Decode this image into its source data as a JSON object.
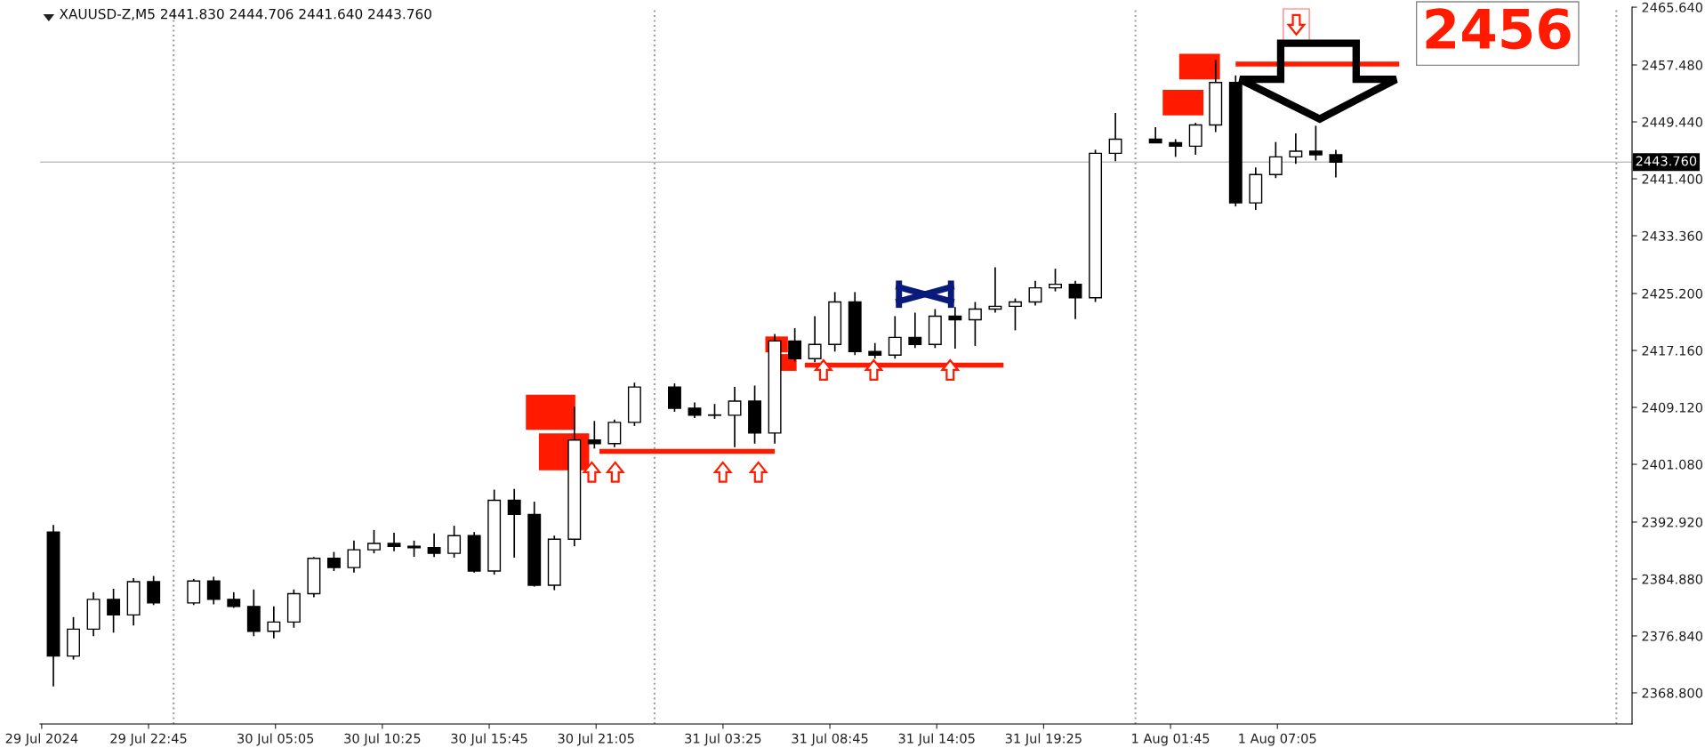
{
  "chart_data": {
    "type": "candlestick",
    "title": "XAUUSD-Z,M5 2441.830 2444.706 2441.640 2443.760",
    "color": "#000000",
    "x": [
      "2024-07-29T18:00",
      "2024-07-29T19:00",
      "2024-07-29T20:00",
      "2024-07-29T21:00",
      "2024-07-29T22:00",
      "2024-07-29T23:00",
      "2024-07-30T01:00",
      "2024-07-30T02:00",
      "2024-07-30T03:00",
      "2024-07-30T04:00",
      "2024-07-30T05:00",
      "2024-07-30T06:00",
      "2024-07-30T07:00",
      "2024-07-30T08:00",
      "2024-07-30T09:00",
      "2024-07-30T10:00",
      "2024-07-30T11:00",
      "2024-07-30T12:00",
      "2024-07-30T13:00",
      "2024-07-30T14:00",
      "2024-07-30T15:00",
      "2024-07-30T16:00",
      "2024-07-30T17:00",
      "2024-07-30T18:00",
      "2024-07-30T19:00",
      "2024-07-30T20:00",
      "2024-07-30T21:00",
      "2024-07-30T22:00",
      "2024-07-30T23:00",
      "2024-07-31T01:00",
      "2024-07-31T02:00",
      "2024-07-31T03:00",
      "2024-07-31T04:00",
      "2024-07-31T05:00",
      "2024-07-31T06:00",
      "2024-07-31T07:00",
      "2024-07-31T08:00",
      "2024-07-31T09:00",
      "2024-07-31T10:00",
      "2024-07-31T11:00",
      "2024-07-31T12:00",
      "2024-07-31T13:00",
      "2024-07-31T14:00",
      "2024-07-31T15:00",
      "2024-07-31T16:00",
      "2024-07-31T17:00",
      "2024-07-31T18:00",
      "2024-07-31T19:00",
      "2024-07-31T20:00",
      "2024-07-31T21:00",
      "2024-07-31T22:00",
      "2024-07-31T23:00",
      "2024-08-01T01:00",
      "2024-08-01T02:00",
      "2024-08-01T03:00",
      "2024-08-01T04:00",
      "2024-08-01T05:00",
      "2024-08-01T06:00",
      "2024-08-01T07:00",
      "2024-08-01T08:00",
      "2024-08-01T09:00",
      "2024-08-01T10:00"
    ],
    "ohlc": [
      [
        2391.5,
        2392.5,
        2369.7,
        2374
      ],
      [
        2374,
        2379.5,
        2373.5,
        2377.8
      ],
      [
        2377.8,
        2383,
        2376.8,
        2382
      ],
      [
        2382,
        2383.5,
        2377.3,
        2379.8
      ],
      [
        2379.8,
        2385,
        2378.3,
        2384.5
      ],
      [
        2384.5,
        2385.3,
        2381.2,
        2381.5
      ],
      [
        2381.5,
        2384.9,
        2381.2,
        2384.6
      ],
      [
        2384.6,
        2385.2,
        2381.3,
        2382
      ],
      [
        2382,
        2383,
        2380.8,
        2381
      ],
      [
        2381,
        2383.4,
        2376.8,
        2377.5
      ],
      [
        2377.5,
        2381,
        2376.5,
        2378.8
      ],
      [
        2378.8,
        2383.4,
        2378,
        2382.8
      ],
      [
        2382.8,
        2388,
        2382.3,
        2387.8
      ],
      [
        2387.8,
        2388.7,
        2386,
        2386.5
      ],
      [
        2386.5,
        2390.3,
        2385.8,
        2389
      ],
      [
        2389,
        2391.8,
        2388.5,
        2389.9
      ],
      [
        2389.9,
        2391.4,
        2388.8,
        2389.5
      ],
      [
        2389.5,
        2390.3,
        2388,
        2389.3
      ],
      [
        2389.3,
        2391.3,
        2388,
        2388.5
      ],
      [
        2388.5,
        2392.4,
        2387.9,
        2391
      ],
      [
        2391,
        2391.5,
        2385.8,
        2386
      ],
      [
        2386,
        2397.5,
        2385.5,
        2396
      ],
      [
        2396,
        2397.6,
        2387.9,
        2394
      ],
      [
        2394,
        2395.8,
        2383.8,
        2384
      ],
      [
        2384,
        2391,
        2383.3,
        2390.5
      ],
      [
        2390.5,
        2409.2,
        2389.5,
        2404.5
      ],
      [
        2404.5,
        2407.2,
        2403.3,
        2404
      ],
      [
        2404,
        2407.4,
        2403.5,
        2407
      ],
      [
        2407,
        2412.6,
        2406.5,
        2412
      ],
      [
        2412,
        2412.5,
        2408.5,
        2409
      ],
      [
        2409,
        2409.8,
        2407.6,
        2408
      ],
      [
        2408,
        2409.6,
        2407.5,
        2408
      ],
      [
        2408,
        2412,
        2403.5,
        2410
      ],
      [
        2410,
        2412.2,
        2404,
        2405.5
      ],
      [
        2405.5,
        2419.5,
        2404,
        2418.5
      ],
      [
        2418.5,
        2420.3,
        2415.6,
        2416
      ],
      [
        2416,
        2422,
        2415.5,
        2418
      ],
      [
        2418,
        2425.4,
        2417,
        2424
      ],
      [
        2424,
        2425.4,
        2416.5,
        2417
      ],
      [
        2417,
        2418.2,
        2416,
        2416.5
      ],
      [
        2416.5,
        2422,
        2416,
        2419
      ],
      [
        2419,
        2422.5,
        2417.5,
        2418
      ],
      [
        2418,
        2423,
        2417.5,
        2422
      ],
      [
        2422,
        2423.3,
        2417.4,
        2421.5
      ],
      [
        2421.5,
        2424,
        2417.8,
        2423
      ],
      [
        2423,
        2428.9,
        2422.5,
        2423.4
      ],
      [
        2423.4,
        2424.5,
        2420,
        2424
      ],
      [
        2424,
        2427,
        2423.5,
        2426
      ],
      [
        2426,
        2428.7,
        2425.5,
        2426.5
      ],
      [
        2426.5,
        2427,
        2421.6,
        2424.6
      ],
      [
        2424.6,
        2445.5,
        2424,
        2445
      ],
      [
        2445,
        2450.7,
        2443.9,
        2447
      ],
      [
        2447,
        2448.7,
        2446.5,
        2446.5
      ],
      [
        2446.5,
        2447,
        2444.5,
        2446
      ],
      [
        2446,
        2449.3,
        2444.8,
        2449
      ],
      [
        2449,
        2458.2,
        2448,
        2455
      ],
      [
        2455,
        2456,
        2437.5,
        2438
      ],
      [
        2438,
        2443,
        2437,
        2442
      ],
      [
        2442,
        2446.6,
        2441.5,
        2444.5
      ],
      [
        2444.5,
        2447.8,
        2443.5,
        2445.3
      ],
      [
        2445.3,
        2448.9,
        2444,
        2444.8
      ],
      [
        2444.8,
        2445.5,
        2441.6,
        2443.76
      ]
    ],
    "series": [
      {
        "type": "line",
        "color": "#ff1a00",
        "x": [
          "2024-07-30T21:15",
          "2024-07-31T06:00"
        ],
        "values": [
          2402.9,
          2402.9
        ]
      },
      {
        "type": "line",
        "color": "#ff1a00",
        "x": [
          "2024-07-31T07:30",
          "2024-07-31T17:25"
        ],
        "values": [
          2415.1,
          2415.1
        ]
      },
      {
        "type": "line",
        "color": "#ff1a00",
        "x": [
          "2024-08-01T05:00",
          "2024-08-01T13:10"
        ],
        "values": [
          2457.6,
          2457.6
        ]
      }
    ],
    "xlim": [
      "2024-07-29T17:20",
      "2024-08-02T00:47"
    ],
    "xticks": [
      {
        "value": "2024-07-29T17:25",
        "label": "29 Jul 2024"
      },
      {
        "value": "2024-07-29T22:45",
        "label": "29 Jul 22:45"
      },
      {
        "value": "2024-07-30T05:05",
        "label": "30 Jul 05:05"
      },
      {
        "value": "2024-07-30T10:25",
        "label": "30 Jul 10:25"
      },
      {
        "value": "2024-07-30T15:45",
        "label": "30 Jul 15:45"
      },
      {
        "value": "2024-07-30T21:05",
        "label": "30 Jul 21:05"
      },
      {
        "value": "2024-07-31T03:25",
        "label": "31 Jul 03:25"
      },
      {
        "value": "2024-07-31T08:45",
        "label": "31 Jul 08:45"
      },
      {
        "value": "2024-07-31T14:05",
        "label": "31 Jul 14:05"
      },
      {
        "value": "2024-07-31T19:25",
        "label": "31 Jul 19:25"
      },
      {
        "value": "2024-08-01T01:45",
        "label": "1 Aug 01:45"
      },
      {
        "value": "2024-08-01T07:05",
        "label": "1 Aug 07:05"
      }
    ],
    "ylim": [
      2364.4,
      2465.65
    ],
    "yticks": [
      {
        "value": 2368.8,
        "label": "2368.800"
      },
      {
        "value": 2376.84,
        "label": "2376.840"
      },
      {
        "value": 2384.88,
        "label": "2384.880"
      },
      {
        "value": 2392.92,
        "label": "2392.920"
      },
      {
        "value": 2401.08,
        "label": "2401.080"
      },
      {
        "value": 2409.12,
        "label": "2409.120"
      },
      {
        "value": 2417.16,
        "label": "2417.160"
      },
      {
        "value": 2425.2,
        "label": "2425.200"
      },
      {
        "value": 2433.36,
        "label": "2433.360"
      },
      {
        "value": 2441.4,
        "label": "2441.400"
      },
      {
        "value": 2449.44,
        "label": "2449.440"
      },
      {
        "value": 2457.48,
        "label": "2457.480"
      },
      {
        "value": 2465.64,
        "label": "2465.640"
      }
    ],
    "ref_lines": [
      {
        "axis": "x",
        "value": "2024-07-30T00:00",
        "color": "#a0a0a0",
        "line_style": "dotted"
      },
      {
        "axis": "x",
        "value": "2024-07-31T00:00",
        "color": "#a0a0a0",
        "line_style": "dotted"
      },
      {
        "axis": "x",
        "value": "2024-08-01T00:00",
        "color": "#a0a0a0",
        "line_style": "dotted"
      },
      {
        "axis": "x",
        "value": "2024-08-02T00:00",
        "color": "#a0a0a0",
        "line_style": "dotted"
      },
      {
        "axis": "y",
        "value": 2443.76,
        "label": "2443.760",
        "color": "#c0c0c0",
        "line_style": "solid"
      }
    ],
    "annotations": [
      "2456"
    ],
    "grid": false,
    "legend": false
  }
}
